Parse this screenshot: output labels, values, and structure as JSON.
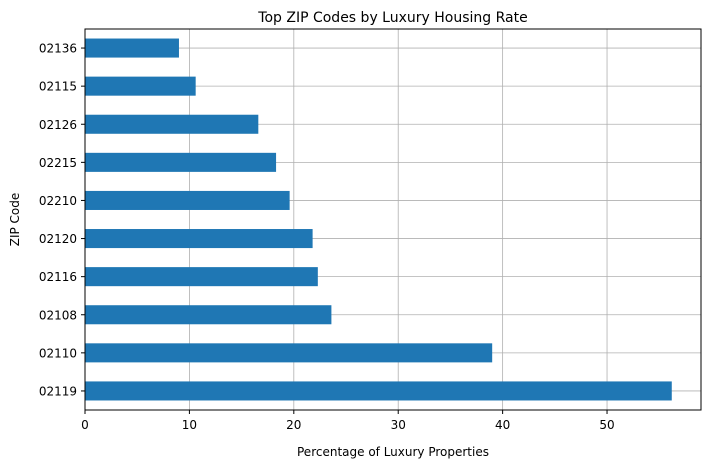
{
  "chart_data": {
    "type": "bar",
    "orientation": "horizontal",
    "title": "Top ZIP Codes by Luxury Housing Rate",
    "xlabel": "Percentage of Luxury Properties",
    "ylabel": "ZIP Code",
    "categories": [
      "02119",
      "02110",
      "02108",
      "02116",
      "02120",
      "02210",
      "02215",
      "02126",
      "02115",
      "02136"
    ],
    "values": [
      56.2,
      39.0,
      23.6,
      22.3,
      21.8,
      19.6,
      18.3,
      16.6,
      10.6,
      9.0
    ],
    "xlim": [
      0,
      59
    ],
    "xticks": [
      0,
      10,
      20,
      30,
      40,
      50
    ],
    "xtick_labels": [
      "0",
      "10",
      "20",
      "30",
      "40",
      "50"
    ],
    "grid": true,
    "bar_color": "#1f77b4"
  }
}
